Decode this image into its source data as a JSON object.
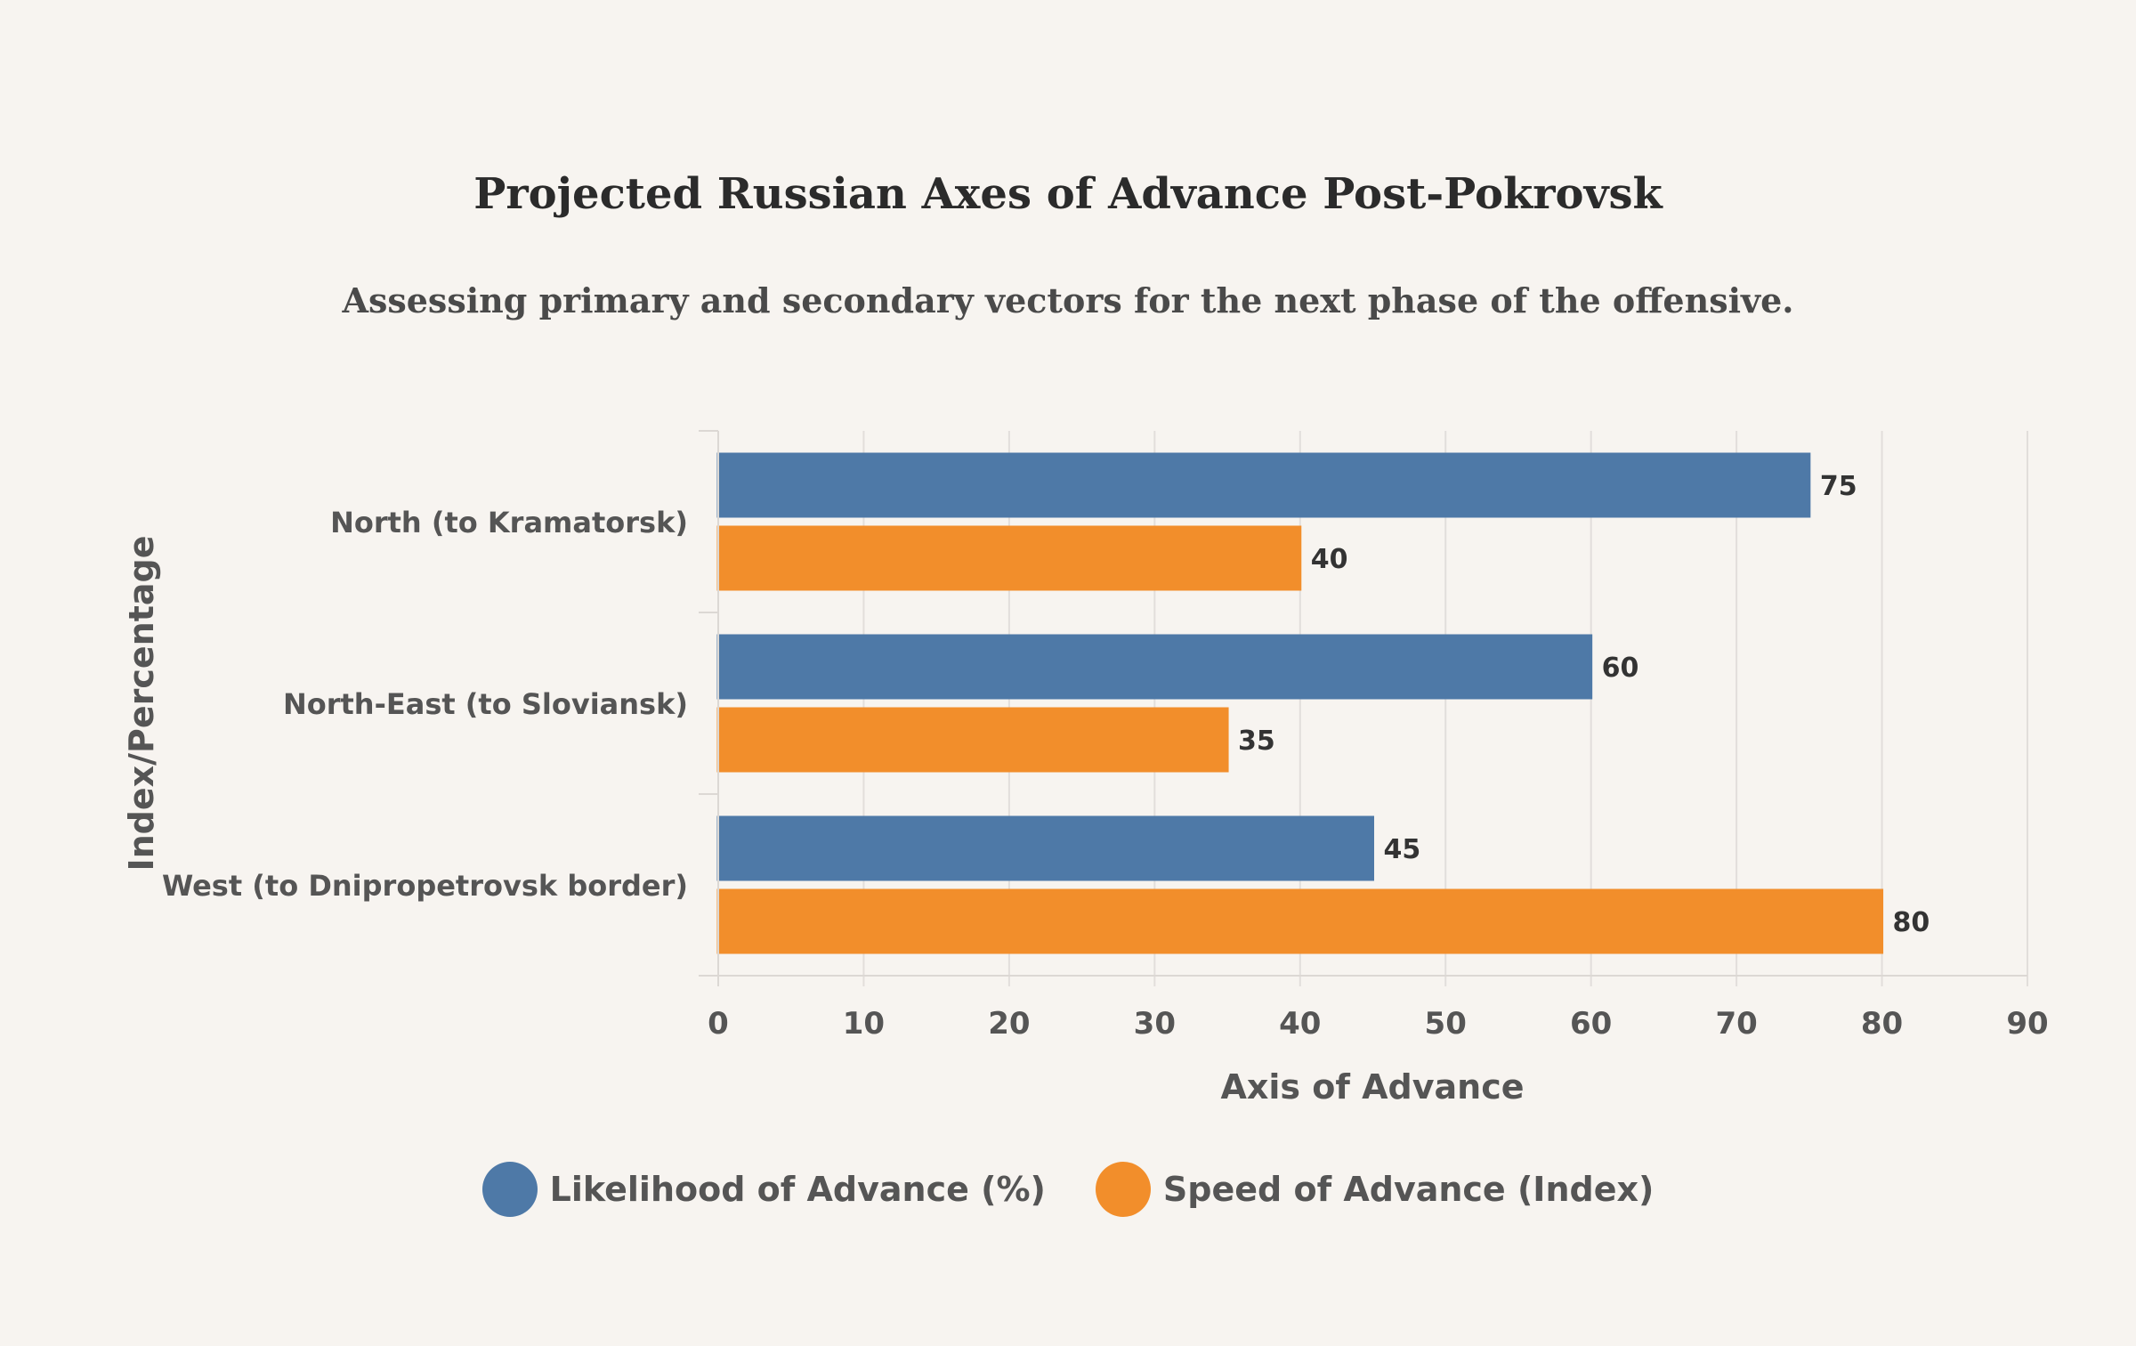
{
  "chart_data": {
    "type": "bar",
    "orientation": "horizontal",
    "title": "Projected Russian Axes of Advance Post-Pokrovsk",
    "subtitle": "Assessing primary and secondary vectors for the next phase of the offensive.",
    "xlabel": "Axis of Advance",
    "ylabel": "Index/Percentage",
    "xlim": [
      0,
      90
    ],
    "xticks": [
      "0",
      "10",
      "20",
      "30",
      "40",
      "50",
      "60",
      "70",
      "80",
      "90"
    ],
    "grid": true,
    "legend_position": "bottom",
    "categories": [
      "North (to Kramatorsk)",
      "North-East (to Sloviansk)",
      "West (to Dnipropetrovsk border)"
    ],
    "series": [
      {
        "name": "Likelihood of Advance (%)",
        "values": [
          75,
          60,
          45
        ],
        "color": "#4e79a7"
      },
      {
        "name": "Speed of Advance (Index)",
        "values": [
          40,
          35,
          80
        ],
        "color": "#f28e2b"
      }
    ]
  }
}
